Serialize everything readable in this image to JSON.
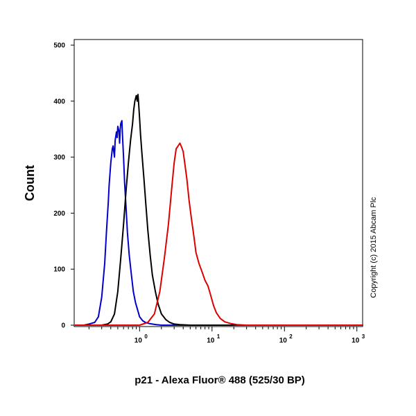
{
  "chart_data": {
    "type": "line",
    "title": "",
    "xlabel": "p21 - Alexa Fluor® 488 (525/30 BP)",
    "ylabel": "Count",
    "x_scale": "log",
    "xlim": [
      0.125,
      1200
    ],
    "ylim": [
      0,
      510
    ],
    "grid": false,
    "legend": "none",
    "annotation": "Copyright (c) 2015 Abcam Plc",
    "x_tick_labels": [
      {
        "base": "10",
        "exp": "0",
        "value": 1
      },
      {
        "base": "10",
        "exp": "1",
        "value": 10
      },
      {
        "base": "10",
        "exp": "2",
        "value": 100
      },
      {
        "base": "10",
        "exp": "3",
        "value": 1000
      }
    ],
    "y_tick_labels": [
      "0",
      "100",
      "200",
      "300",
      "400",
      "500"
    ],
    "series": [
      {
        "color": "#0000cc",
        "x": [
          0.13,
          0.17,
          0.2,
          0.24,
          0.27,
          0.3,
          0.33,
          0.35,
          0.37,
          0.38,
          0.4,
          0.42,
          0.43,
          0.45,
          0.46,
          0.48,
          0.49,
          0.5,
          0.52,
          0.53,
          0.54,
          0.55,
          0.57,
          0.58,
          0.6,
          0.62,
          0.65,
          0.68,
          0.72,
          0.77,
          0.82,
          0.88,
          0.95,
          1.0,
          1.1,
          1.2,
          1.35,
          1.5,
          1.7,
          2.0,
          2.4,
          3.0,
          100,
          1200
        ],
        "y": [
          0,
          0,
          2,
          5,
          15,
          50,
          110,
          170,
          220,
          250,
          290,
          315,
          320,
          300,
          330,
          345,
          335,
          355,
          345,
          325,
          350,
          360,
          365,
          340,
          300,
          255,
          210,
          165,
          125,
          90,
          60,
          40,
          25,
          15,
          8,
          5,
          3,
          2,
          1,
          0,
          0,
          0,
          0,
          0
        ]
      },
      {
        "color": "#000000",
        "x": [
          0.13,
          0.3,
          0.36,
          0.4,
          0.45,
          0.5,
          0.55,
          0.6,
          0.65,
          0.7,
          0.75,
          0.8,
          0.83,
          0.86,
          0.9,
          0.93,
          0.95,
          0.97,
          1.0,
          1.03,
          1.08,
          1.15,
          1.22,
          1.3,
          1.4,
          1.5,
          1.65,
          1.8,
          2.0,
          2.3,
          2.6,
          3.0,
          3.6,
          5,
          100,
          1200
        ],
        "y": [
          0,
          0,
          2,
          6,
          20,
          60,
          120,
          180,
          240,
          290,
          330,
          360,
          385,
          400,
          410,
          400,
          412,
          395,
          370,
          340,
          305,
          260,
          215,
          170,
          125,
          90,
          60,
          38,
          20,
          10,
          5,
          2,
          1,
          0,
          0,
          0
        ]
      },
      {
        "color": "#dd0000",
        "x": [
          0.13,
          1.0,
          1.3,
          1.6,
          1.9,
          2.2,
          2.5,
          2.8,
          3.0,
          3.2,
          3.4,
          3.6,
          3.8,
          4.0,
          4.2,
          4.5,
          4.8,
          5.2,
          5.6,
          6.0,
          6.6,
          7.3,
          8.0,
          8.8,
          9.5,
          10.5,
          11.5,
          13,
          15,
          18,
          22,
          30,
          50,
          100,
          1200
        ],
        "y": [
          0,
          0,
          5,
          20,
          60,
          120,
          180,
          250,
          290,
          315,
          320,
          325,
          318,
          310,
          290,
          260,
          225,
          190,
          160,
          130,
          110,
          95,
          80,
          70,
          55,
          35,
          22,
          12,
          6,
          3,
          1,
          0,
          0,
          0,
          0
        ]
      }
    ]
  }
}
